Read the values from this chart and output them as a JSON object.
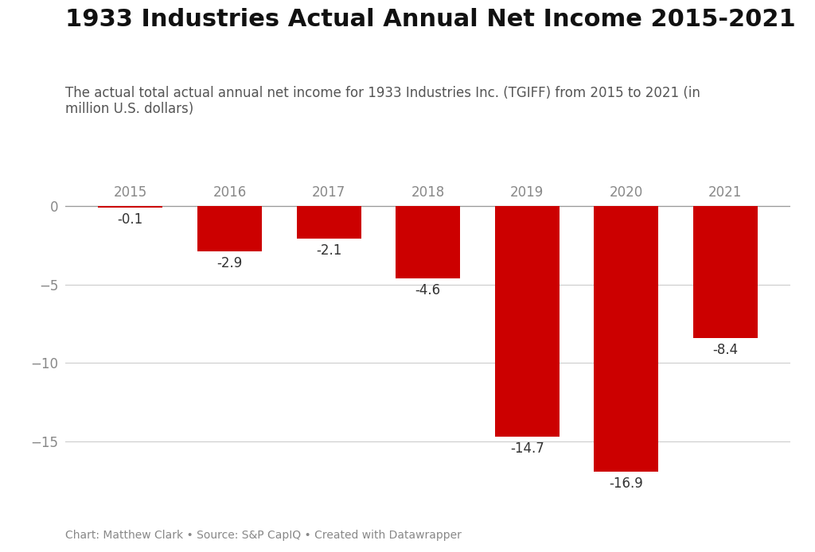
{
  "title": "1933 Industries Actual Annual Net Income 2015-2021",
  "subtitle": "The actual total actual annual net income for 1933 Industries Inc. (TGIFF) from 2015 to 2021 (in\nmillion U.S. dollars)",
  "footer": "Chart: Matthew Clark • Source: S&P CapIQ • Created with Datawrapper",
  "categories": [
    "2015",
    "2016",
    "2017",
    "2018",
    "2019",
    "2020",
    "2021"
  ],
  "values": [
    -0.1,
    -2.9,
    -2.1,
    -4.6,
    -14.7,
    -16.9,
    -8.4
  ],
  "bar_color": "#cc0000",
  "background_color": "#ffffff",
  "ylim": [
    -18.5,
    1.5
  ],
  "yticks": [
    0,
    -5,
    -10,
    -15
  ],
  "title_fontsize": 22,
  "subtitle_fontsize": 12,
  "cat_label_fontsize": 12,
  "val_label_fontsize": 12,
  "footer_fontsize": 10,
  "ytick_fontsize": 12,
  "axis_label_color": "#888888",
  "bar_label_color": "#333333",
  "grid_color": "#cccccc",
  "zeroline_color": "#999999"
}
